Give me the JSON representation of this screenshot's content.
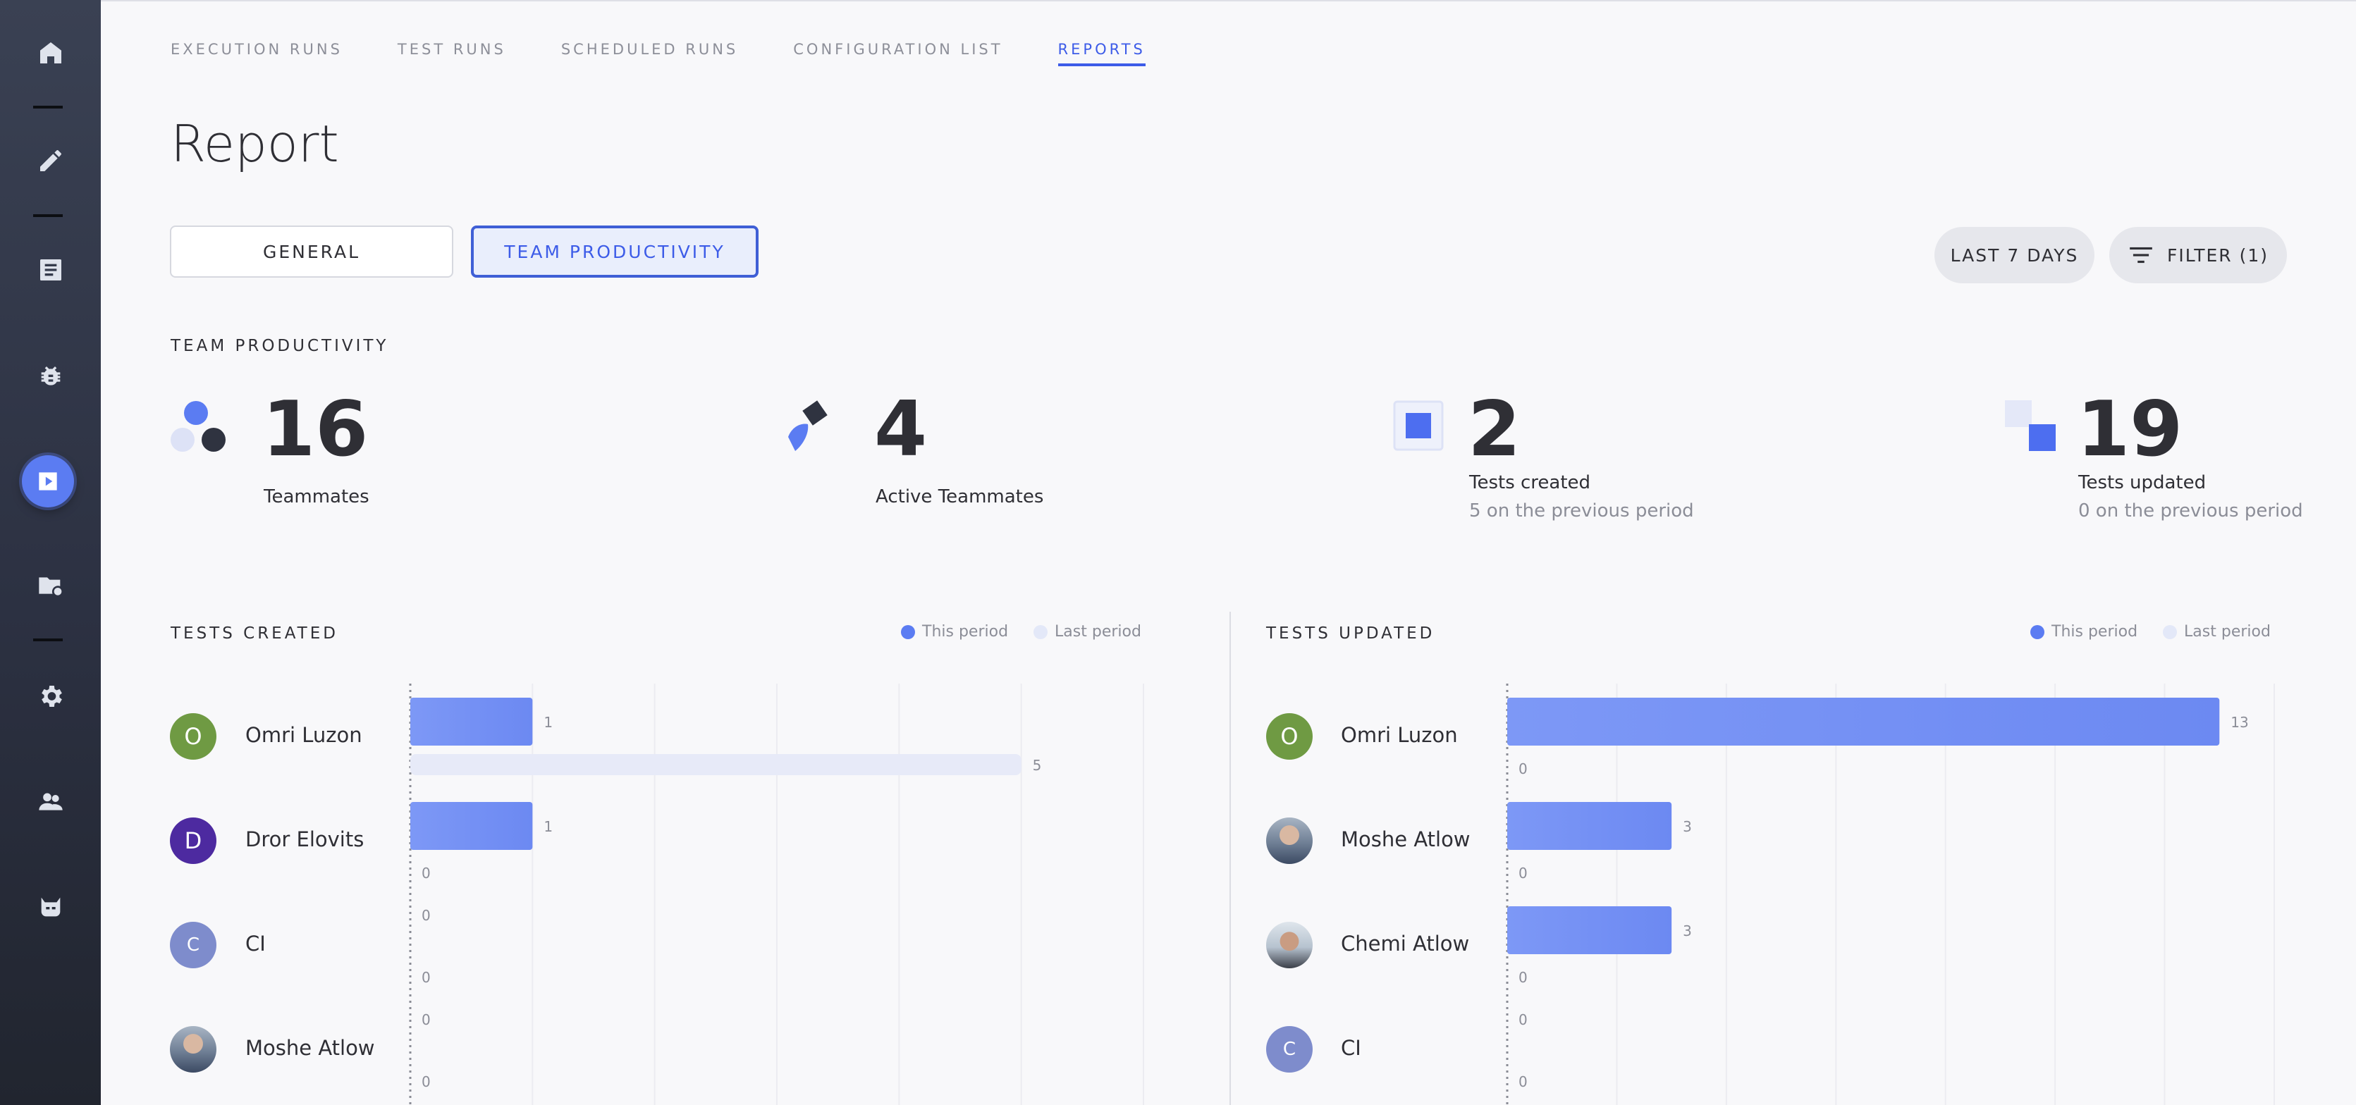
{
  "sidebar": {
    "icons": [
      "home-icon",
      "pencil-icon",
      "list-icon",
      "bug-icon",
      "play-icon",
      "folder-settings-icon",
      "gear-icon",
      "team-icon",
      "mask-icon"
    ]
  },
  "tabs": [
    "EXECUTION RUNS",
    "TEST RUNS",
    "SCHEDULED RUNS",
    "CONFIGURATION LIST",
    "REPORTS"
  ],
  "active_tab": "REPORTS",
  "page_title": "Report",
  "view_toggle": {
    "general": "GENERAL",
    "team": "TEAM PRODUCTIVITY"
  },
  "period_button": "LAST 7 DAYS",
  "filter_button": "FILTER (1)",
  "stats": {
    "section_title": "TEAM PRODUCTIVITY",
    "teammates": {
      "value": "16",
      "label": "Teammates"
    },
    "active": {
      "value": "4",
      "label": "Active Teammates"
    },
    "created": {
      "value": "2",
      "label": "Tests created",
      "sub": "5 on the previous period"
    },
    "updated": {
      "value": "19",
      "label": "Tests updated",
      "sub": "0 on the previous period"
    }
  },
  "legend": {
    "this_period": "This period",
    "last_period": "Last period"
  },
  "colors": {
    "accent": "#3d5ce8",
    "bar_this": "#6f8cf4",
    "bar_last": "#e6e9f8",
    "sidebar": "#2c3142"
  },
  "chart_data": [
    {
      "type": "bar",
      "title": "TESTS CREATED",
      "categories": [
        "Omri Luzon",
        "Dror Elovits",
        "CI",
        "Moshe Atlow"
      ],
      "avatars": [
        {
          "initial": "O",
          "color": "#6f9a43"
        },
        {
          "initial": "D",
          "color": "#4d2aa0"
        },
        {
          "initial": "C",
          "color": "#7e8ccc"
        },
        {
          "initial": "",
          "color": "photo"
        }
      ],
      "series": [
        {
          "name": "This period",
          "values": [
            1,
            1,
            0,
            0
          ]
        },
        {
          "name": "Last period",
          "values": [
            5,
            0,
            0,
            0
          ]
        }
      ],
      "xlim": [
        0,
        6
      ]
    },
    {
      "type": "bar",
      "title": "TESTS UPDATED",
      "categories": [
        "Omri Luzon",
        "Moshe Atlow",
        "Chemi Atlow",
        "CI"
      ],
      "avatars": [
        {
          "initial": "O",
          "color": "#6f9a43"
        },
        {
          "initial": "",
          "color": "photo"
        },
        {
          "initial": "",
          "color": "photo2"
        },
        {
          "initial": "C",
          "color": "#7e8ccc"
        }
      ],
      "series": [
        {
          "name": "This period",
          "values": [
            13,
            3,
            3,
            0
          ]
        },
        {
          "name": "Last period",
          "values": [
            0,
            0,
            0,
            0
          ]
        }
      ],
      "xlim": [
        0,
        14
      ]
    }
  ]
}
